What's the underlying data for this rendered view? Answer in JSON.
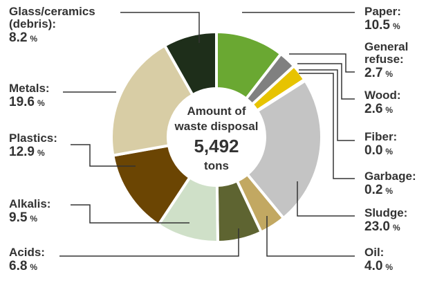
{
  "chart_data": {
    "type": "pie",
    "center_label": {
      "line1": "Amount of",
      "line2": "waste disposal",
      "total": "5,492",
      "unit": "tons"
    },
    "percent_sign": "%",
    "slices": [
      {
        "key": "paper",
        "name_lines": [
          "Paper:"
        ],
        "value": 10.5,
        "value_text": "10.5",
        "color": "#6aa832"
      },
      {
        "key": "general-refuse",
        "name_lines": [
          "General",
          "refuse:"
        ],
        "value": 2.7,
        "value_text": "2.7",
        "color": "#808080"
      },
      {
        "key": "wood",
        "name_lines": [
          "Wood:"
        ],
        "value": 2.6,
        "value_text": "2.6",
        "color": "#e7c300"
      },
      {
        "key": "fiber",
        "name_lines": [
          "Fiber:"
        ],
        "value": 0.0,
        "value_text": "0.0",
        "color": "#cfcfcf"
      },
      {
        "key": "garbage",
        "name_lines": [
          "Garbage:"
        ],
        "value": 0.2,
        "value_text": "0.2",
        "color": "#a8a8a8"
      },
      {
        "key": "sludge",
        "name_lines": [
          "Sludge:"
        ],
        "value": 23.0,
        "value_text": "23.0",
        "color": "#c4c4c4"
      },
      {
        "key": "oil",
        "name_lines": [
          "Oil:"
        ],
        "value": 4.0,
        "value_text": "4.0",
        "color": "#c2a862"
      },
      {
        "key": "acids",
        "name_lines": [
          "Acids:"
        ],
        "value": 6.8,
        "value_text": "6.8",
        "color": "#5e6431"
      },
      {
        "key": "alkalis",
        "name_lines": [
          "Alkalis:"
        ],
        "value": 9.5,
        "value_text": "9.5",
        "color": "#cfe0c8"
      },
      {
        "key": "plastics",
        "name_lines": [
          "Plastics:"
        ],
        "value": 12.9,
        "value_text": "12.9",
        "color": "#6b4503"
      },
      {
        "key": "metals",
        "name_lines": [
          "Metals:"
        ],
        "value": 19.6,
        "value_text": "19.6",
        "color": "#d8cda5"
      },
      {
        "key": "glass-ceramics",
        "name_lines": [
          "Glass/ceramics",
          "(debris):"
        ],
        "value": 8.2,
        "value_text": "8.2",
        "color": "#1e2e1a"
      }
    ]
  }
}
